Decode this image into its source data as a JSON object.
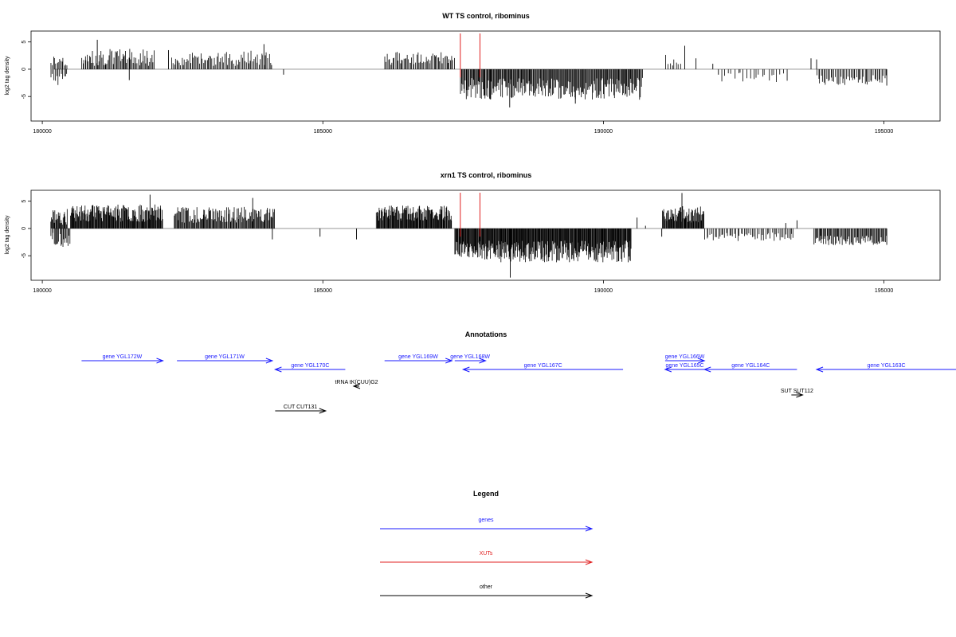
{
  "chart_data": [
    {
      "type": "bar",
      "title": "WT TS control, ribominus",
      "ylabel": "log2 tag density",
      "xlim": [
        179800,
        196000
      ],
      "ylim": [
        -9.5,
        7
      ],
      "x_ticks": [
        "180000",
        "185000",
        "190000",
        "195000"
      ],
      "y_ticks": [
        "5",
        "0",
        "-5"
      ],
      "grid": false,
      "legend": "none",
      "bar_color": "#000000",
      "marker_color": "#e02020",
      "markers_x": [
        187450,
        187800
      ],
      "segments": [
        {
          "from": 180150,
          "to": 180450,
          "sign": 1,
          "mean": 1.6,
          "var": 1.0,
          "count": 14,
          "seed": 11
        },
        {
          "from": 180150,
          "to": 180450,
          "sign": -1,
          "mean": 1.8,
          "var": 1.2,
          "count": 12,
          "seed": 12
        },
        {
          "from": 180700,
          "to": 182000,
          "sign": 1,
          "mean": 2.2,
          "var": 1.6,
          "count": 70,
          "seed": 13
        },
        {
          "from": 182300,
          "to": 184100,
          "sign": 1,
          "mean": 2.0,
          "var": 1.4,
          "count": 80,
          "seed": 14
        },
        {
          "from": 186100,
          "to": 187350,
          "sign": 1,
          "mean": 2.0,
          "var": 1.2,
          "count": 60,
          "seed": 15
        },
        {
          "from": 187450,
          "to": 190700,
          "sign": -1,
          "mean": 3.6,
          "var": 2.0,
          "count": 230,
          "seed": 16
        },
        {
          "from": 191100,
          "to": 191400,
          "sign": 1,
          "mean": 1.6,
          "var": 1.6,
          "count": 8,
          "seed": 17
        },
        {
          "from": 192100,
          "to": 193300,
          "sign": -1,
          "mean": 1.5,
          "var": 0.9,
          "count": 22,
          "seed": 18
        },
        {
          "from": 193800,
          "to": 195050,
          "sign": -1,
          "mean": 2.0,
          "var": 0.9,
          "count": 50,
          "seed": 19
        }
      ],
      "points": [
        {
          "x": 180980,
          "y": 5.4
        },
        {
          "x": 181550,
          "y": -2.0
        },
        {
          "x": 182250,
          "y": 3.5
        },
        {
          "x": 183950,
          "y": 4.6
        },
        {
          "x": 184300,
          "y": -1.0
        },
        {
          "x": 188330,
          "y": -7.0
        },
        {
          "x": 189500,
          "y": -6.3
        },
        {
          "x": 191450,
          "y": 4.3
        },
        {
          "x": 191650,
          "y": 2.0
        },
        {
          "x": 191950,
          "y": 1.0
        },
        {
          "x": 192050,
          "y": -1.0
        },
        {
          "x": 193700,
          "y": 2.0
        },
        {
          "x": 193800,
          "y": 1.8
        },
        {
          "x": 195050,
          "y": -3.0
        }
      ]
    },
    {
      "type": "bar",
      "title": "xrn1 TS control, ribominus",
      "ylabel": "log2 tag density",
      "xlim": [
        179800,
        196000
      ],
      "ylim": [
        -9.5,
        7
      ],
      "x_ticks": [
        "180000",
        "185000",
        "190000",
        "195000"
      ],
      "y_ticks": [
        "5",
        "0",
        "-5"
      ],
      "grid": false,
      "legend": "none",
      "bar_color": "#000000",
      "marker_color": "#e02020",
      "markers_x": [
        187450,
        187800
      ],
      "segments": [
        {
          "from": 180150,
          "to": 180450,
          "sign": 1,
          "mean": 2.2,
          "var": 1.5,
          "count": 25,
          "seed": 21
        },
        {
          "from": 180150,
          "to": 180500,
          "sign": -1,
          "mean": 2.0,
          "var": 1.4,
          "count": 20,
          "seed": 22
        },
        {
          "from": 180500,
          "to": 182150,
          "sign": 1,
          "mean": 2.8,
          "var": 1.6,
          "count": 160,
          "seed": 23
        },
        {
          "from": 182350,
          "to": 184150,
          "sign": 1,
          "mean": 2.5,
          "var": 1.5,
          "count": 130,
          "seed": 24
        },
        {
          "from": 185950,
          "to": 187300,
          "sign": 1,
          "mean": 2.8,
          "var": 1.4,
          "count": 130,
          "seed": 25
        },
        {
          "from": 187350,
          "to": 190500,
          "sign": -1,
          "mean": 4.2,
          "var": 2.0,
          "count": 320,
          "seed": 26
        },
        {
          "from": 191050,
          "to": 191800,
          "sign": 1,
          "mean": 2.6,
          "var": 1.5,
          "count": 70,
          "seed": 27
        },
        {
          "from": 191800,
          "to": 193400,
          "sign": -1,
          "mean": 1.5,
          "var": 0.8,
          "count": 55,
          "seed": 28
        },
        {
          "from": 193750,
          "to": 195050,
          "sign": -1,
          "mean": 2.2,
          "var": 0.9,
          "count": 80,
          "seed": 29
        }
      ],
      "points": [
        {
          "x": 181920,
          "y": 6.2
        },
        {
          "x": 183750,
          "y": 5.6
        },
        {
          "x": 184100,
          "y": -2.0
        },
        {
          "x": 184950,
          "y": -1.5
        },
        {
          "x": 185600,
          "y": -2.0
        },
        {
          "x": 188340,
          "y": -9.0
        },
        {
          "x": 190600,
          "y": 2.0
        },
        {
          "x": 190750,
          "y": 0.5
        },
        {
          "x": 191040,
          "y": -1.5
        },
        {
          "x": 191400,
          "y": 6.5
        },
        {
          "x": 193250,
          "y": 1.0
        },
        {
          "x": 193350,
          "y": -1.0
        },
        {
          "x": 193450,
          "y": 1.5
        },
        {
          "x": 195050,
          "y": -3.0
        }
      ]
    }
  ],
  "annotations": {
    "title": "Annotations",
    "xlim": [
      179800,
      196000
    ],
    "features": [
      {
        "label": "gene YGL172W",
        "start": 180700,
        "end": 182150,
        "strand": "+",
        "row": 0,
        "kind": "gene"
      },
      {
        "label": "gene YGL171W",
        "start": 182400,
        "end": 184100,
        "strand": "+",
        "row": 0,
        "kind": "gene"
      },
      {
        "label": "gene YGL170C",
        "start": 184150,
        "end": 185400,
        "strand": "-",
        "row": 1,
        "kind": "gene"
      },
      {
        "label": "gene YGL169W",
        "start": 186100,
        "end": 187300,
        "strand": "+",
        "row": 0,
        "kind": "gene"
      },
      {
        "label": "gene YGL168W",
        "start": 187350,
        "end": 187900,
        "strand": "+",
        "row": 0,
        "kind": "gene"
      },
      {
        "label": "gene YGL167C",
        "start": 187500,
        "end": 190350,
        "strand": "-",
        "row": 1,
        "kind": "gene"
      },
      {
        "label": "gene YGL166W",
        "start": 191100,
        "end": 191800,
        "strand": "+",
        "row": 0,
        "kind": "gene"
      },
      {
        "label": "gene YGL165C",
        "start": 191100,
        "end": 191800,
        "strand": "-",
        "row": 1,
        "kind": "gene"
      },
      {
        "label": "gene YGL164C",
        "start": 191800,
        "end": 193450,
        "strand": "-",
        "row": 1,
        "kind": "gene"
      },
      {
        "label": "gene YGL163C",
        "start": 193800,
        "end": 196300,
        "strand": "-",
        "row": 1,
        "kind": "gene"
      },
      {
        "label": "tRNA tK(CUU)G2",
        "start": 185550,
        "end": 185650,
        "strand": "-",
        "row": 2,
        "kind": "other"
      },
      {
        "label": "SUT SUT112",
        "start": 193350,
        "end": 193550,
        "strand": "+",
        "row": 3,
        "kind": "other"
      },
      {
        "label": "CUT CUT131",
        "start": 184150,
        "end": 185050,
        "strand": "+",
        "row": 4,
        "kind": "other"
      }
    ]
  },
  "legend": {
    "title": "Legend",
    "items": [
      {
        "label": "genes",
        "color": "#1a1aff"
      },
      {
        "label": "XUTs",
        "color": "#e02020"
      },
      {
        "label": "other",
        "color": "#000000"
      }
    ]
  }
}
